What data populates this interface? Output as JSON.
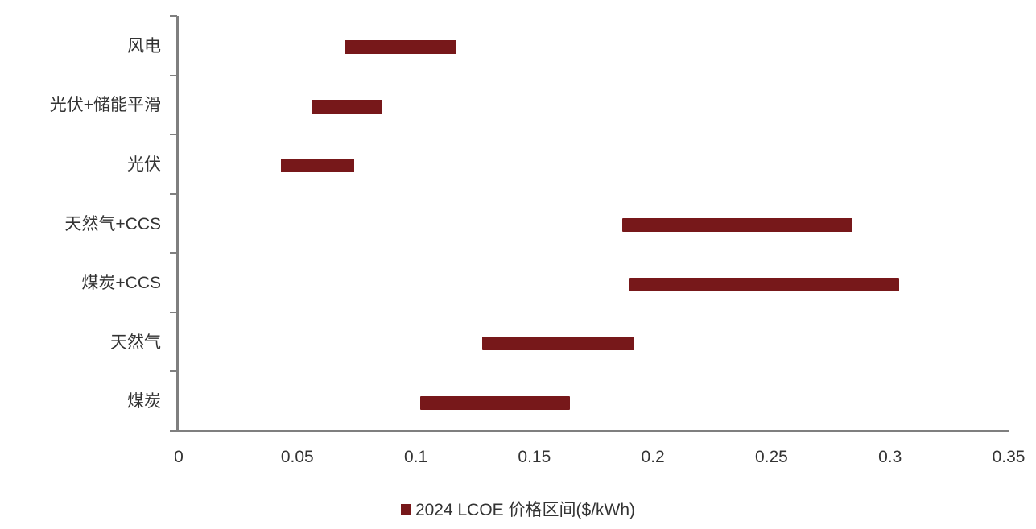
{
  "chart_data": {
    "type": "bar",
    "subtype": "horizontal-range",
    "title": "",
    "xlabel": "",
    "ylabel": "",
    "categories": [
      "风电",
      "光伏+储能平滑",
      "光伏",
      "天然气+CCS",
      "煤炭+CCS",
      "天然气",
      "煤炭"
    ],
    "series": [
      {
        "name": "2024 LCOE 价格区间($/kWh)",
        "ranges": [
          {
            "category": "风电",
            "min": 0.07,
            "max": 0.117
          },
          {
            "category": "光伏+储能平滑",
            "min": 0.056,
            "max": 0.086
          },
          {
            "category": "光伏",
            "min": 0.043,
            "max": 0.074
          },
          {
            "category": "天然气+CCS",
            "min": 0.187,
            "max": 0.284
          },
          {
            "category": "煤炭+CCS",
            "min": 0.19,
            "max": 0.304
          },
          {
            "category": "天然气",
            "min": 0.128,
            "max": 0.192
          },
          {
            "category": "煤炭",
            "min": 0.102,
            "max": 0.165
          }
        ]
      }
    ],
    "xlim": [
      0,
      0.35
    ],
    "x_ticks": [
      {
        "value": 0,
        "label": "0"
      },
      {
        "value": 0.05,
        "label": "0.05"
      },
      {
        "value": 0.1,
        "label": "0.1"
      },
      {
        "value": 0.15,
        "label": "0.15"
      },
      {
        "value": 0.2,
        "label": "0.2"
      },
      {
        "value": 0.25,
        "label": "0.25"
      },
      {
        "value": 0.3,
        "label": "0.3"
      },
      {
        "value": 0.35,
        "label": "0.35"
      }
    ],
    "grid": false,
    "legend_position": "bottom-center",
    "legend_label": "2024 LCOE 价格区间($/kWh)",
    "colors": {
      "bar": "#77181A",
      "axis": "#7F7F7F",
      "text": "#333333",
      "background": "#FFFFFF"
    }
  }
}
